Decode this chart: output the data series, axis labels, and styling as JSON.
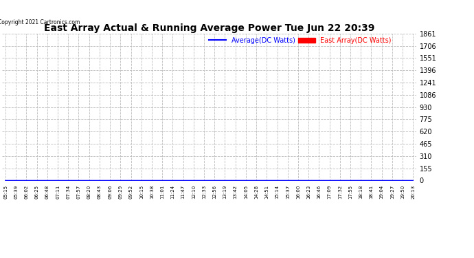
{
  "title": "East Array Actual & Running Average Power Tue Jun 22 20:39",
  "copyright": "Copyright 2021 Cartronics.com",
  "legend_avg": "Average(DC Watts)",
  "legend_east": "East Array(DC Watts)",
  "ymin": 0.0,
  "ymax": 1860.8,
  "yticks": [
    0.0,
    155.1,
    310.1,
    465.2,
    620.3,
    775.3,
    930.4,
    1085.5,
    1240.6,
    1395.6,
    1550.7,
    1705.8,
    1860.8
  ],
  "bar_color": "#ff0000",
  "avg_color": "#0000ff",
  "grid_color": "#bbbbbb",
  "background_color": "#ffffff",
  "title_color": "#000000",
  "fig_width": 6.9,
  "fig_height": 3.75,
  "dpi": 100
}
